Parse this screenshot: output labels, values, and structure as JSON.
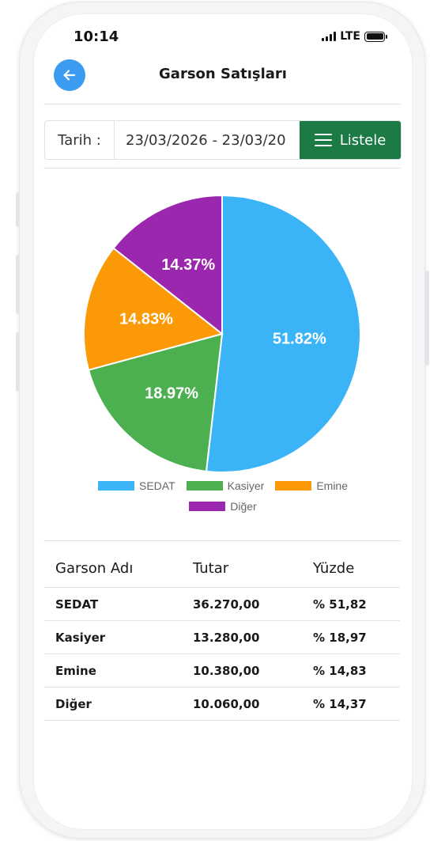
{
  "status_bar": {
    "time": "10:14",
    "network": "LTE"
  },
  "header": {
    "title": "Garson Satışları",
    "back_icon": "arrow-left-icon",
    "accent": "#3a9bf0"
  },
  "filter": {
    "label": "Tarih :",
    "date_value": "23/03/2026 - 23/03/20",
    "list_button": "Listele",
    "list_icon": "menu-icon",
    "button_color": "#1c7a44"
  },
  "chart_data": {
    "type": "pie",
    "categories": [
      "SEDAT",
      "Kasiyer",
      "Emine",
      "Diğer"
    ],
    "values": [
      51.82,
      18.97,
      14.83,
      14.37
    ],
    "labels": [
      "51.82%",
      "18.97%",
      "14.83%",
      "14.37%"
    ],
    "colors": [
      "#3ab4f7",
      "#4caf50",
      "#fb9a06",
      "#9b27af"
    ],
    "legend": "bottom"
  },
  "table": {
    "headers": [
      "Garson Adı",
      "Tutar",
      "Yüzde"
    ],
    "rows": [
      {
        "name": "SEDAT",
        "amount": "36.270,00",
        "percent": "% 51,82"
      },
      {
        "name": "Kasiyer",
        "amount": "13.280,00",
        "percent": "% 18,97"
      },
      {
        "name": "Emine",
        "amount": "10.380,00",
        "percent": "% 14,83"
      },
      {
        "name": "Diğer",
        "amount": "10.060,00",
        "percent": "% 14,37"
      }
    ]
  }
}
